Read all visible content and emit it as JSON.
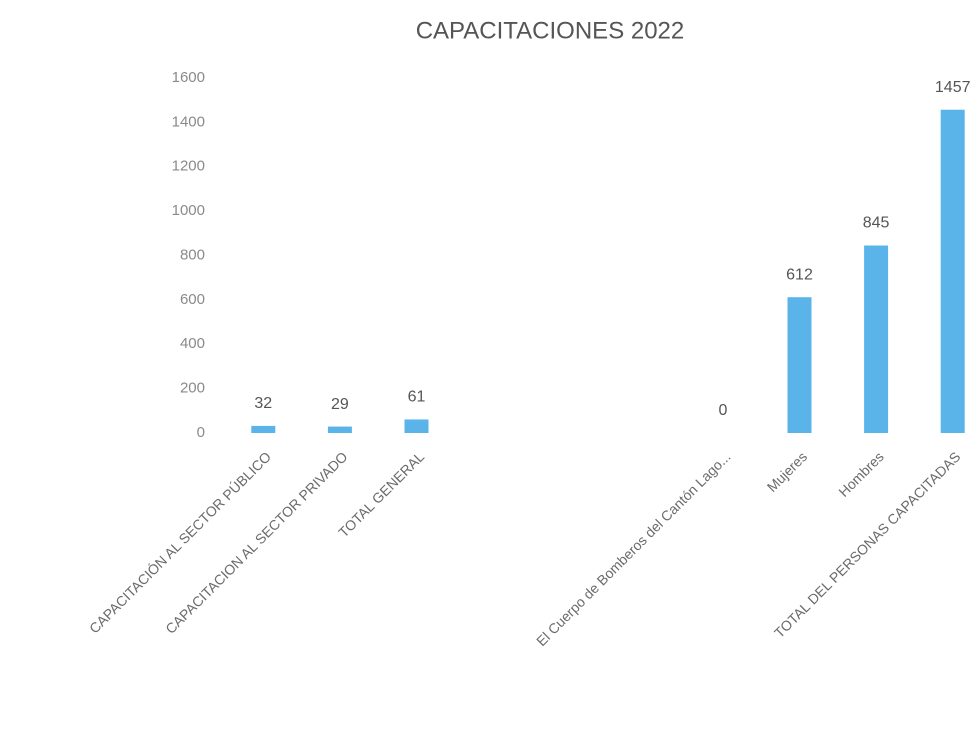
{
  "chart_data": {
    "type": "bar",
    "title": "CAPACITACIONES 2022",
    "categories": [
      "CAPACITACIÓN AL SECTOR PÚBLICO",
      "CAPACITACION AL SECTOR PRIVADO",
      "TOTAL GENERAL",
      null,
      null,
      null,
      "El Cuerpo de Bomberos del Cantón Lago...",
      "Mujeres",
      "Hombres",
      "TOTAL DEL PERSONAS CAPACITADAS"
    ],
    "values": [
      32,
      29,
      61,
      null,
      null,
      null,
      0,
      612,
      845,
      1457
    ],
    "color": "#5ab4ea",
    "ylim": [
      0,
      1600
    ],
    "yticks": [
      0,
      200,
      400,
      600,
      800,
      1000,
      1200,
      1400,
      1600
    ],
    "grid": false
  }
}
